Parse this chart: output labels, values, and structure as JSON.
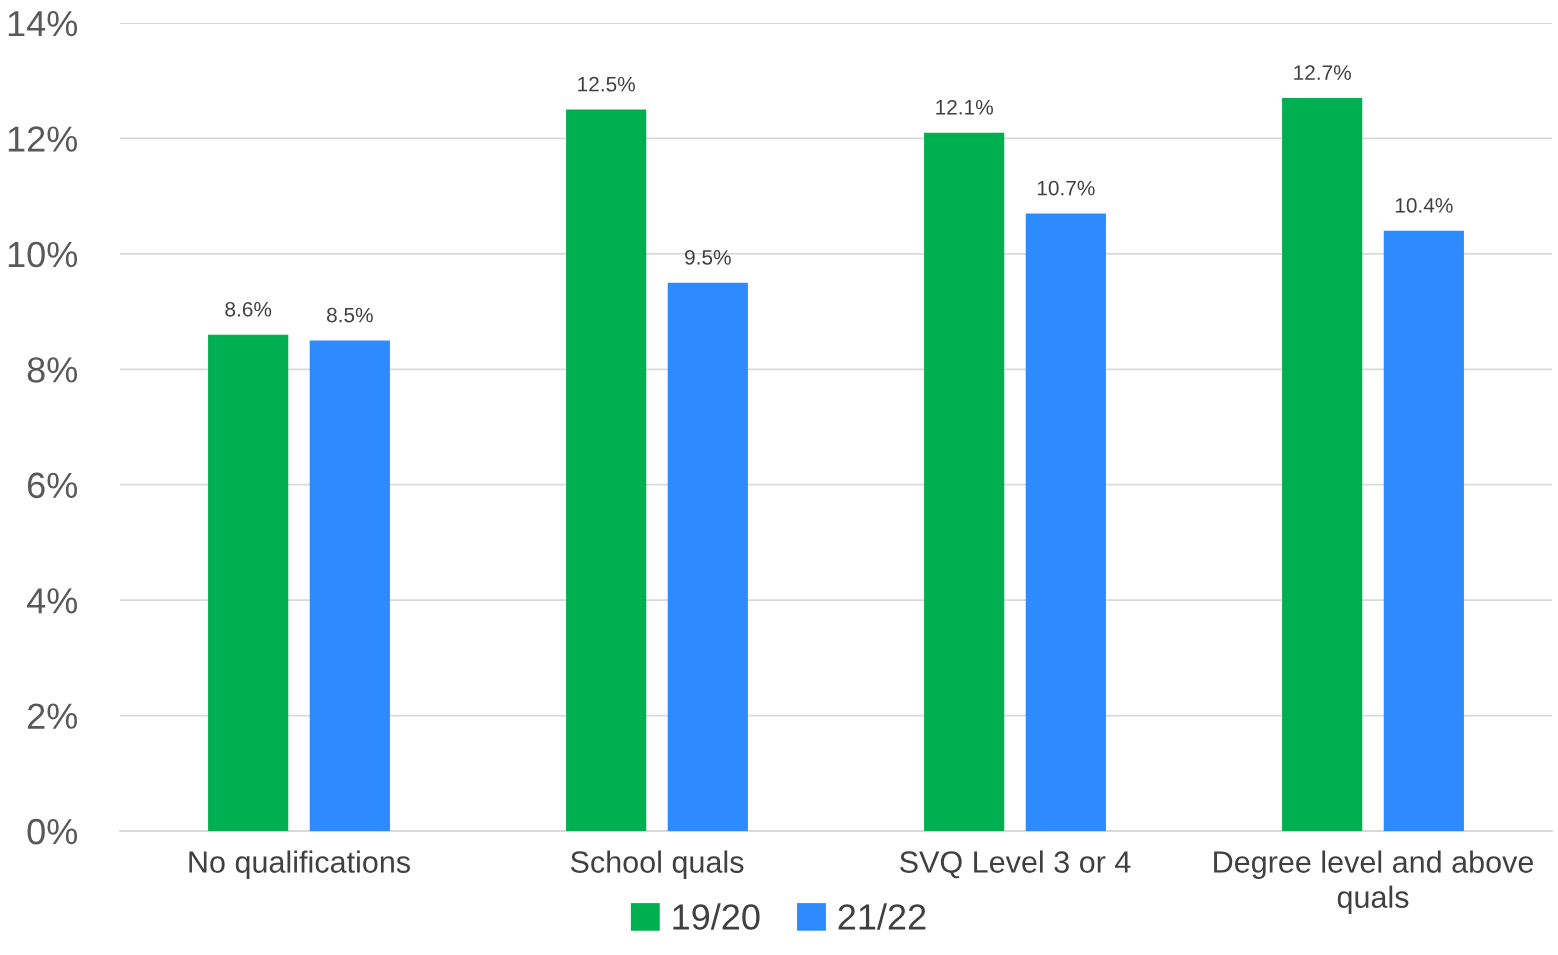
{
  "chart_data": {
    "type": "bar",
    "categories": [
      "No qualifications",
      "School quals",
      "SVQ Level 3 or 4",
      "Degree level and above quals"
    ],
    "series": [
      {
        "name": "19/20",
        "color": "#00b050",
        "values": [
          8.6,
          12.5,
          12.1,
          12.7
        ],
        "value_labels": [
          "8.6%",
          "12.5%",
          "12.1%",
          "12.7%"
        ]
      },
      {
        "name": "21/22",
        "color": "#2e8bff",
        "values": [
          8.5,
          9.5,
          10.7,
          10.4
        ],
        "value_labels": [
          "8.5%",
          "9.5%",
          "10.7%",
          "10.4%"
        ]
      }
    ],
    "ylim": [
      0,
      14
    ],
    "yticks": [
      {
        "value": 0,
        "label": "0%"
      },
      {
        "value": 2,
        "label": "2%"
      },
      {
        "value": 4,
        "label": "4%"
      },
      {
        "value": 6,
        "label": "6%"
      },
      {
        "value": 8,
        "label": "8%"
      },
      {
        "value": 10,
        "label": "10%"
      },
      {
        "value": 12,
        "label": "12%"
      },
      {
        "value": 14,
        "label": "14%"
      }
    ],
    "grid": "y",
    "legend": "bottom"
  }
}
